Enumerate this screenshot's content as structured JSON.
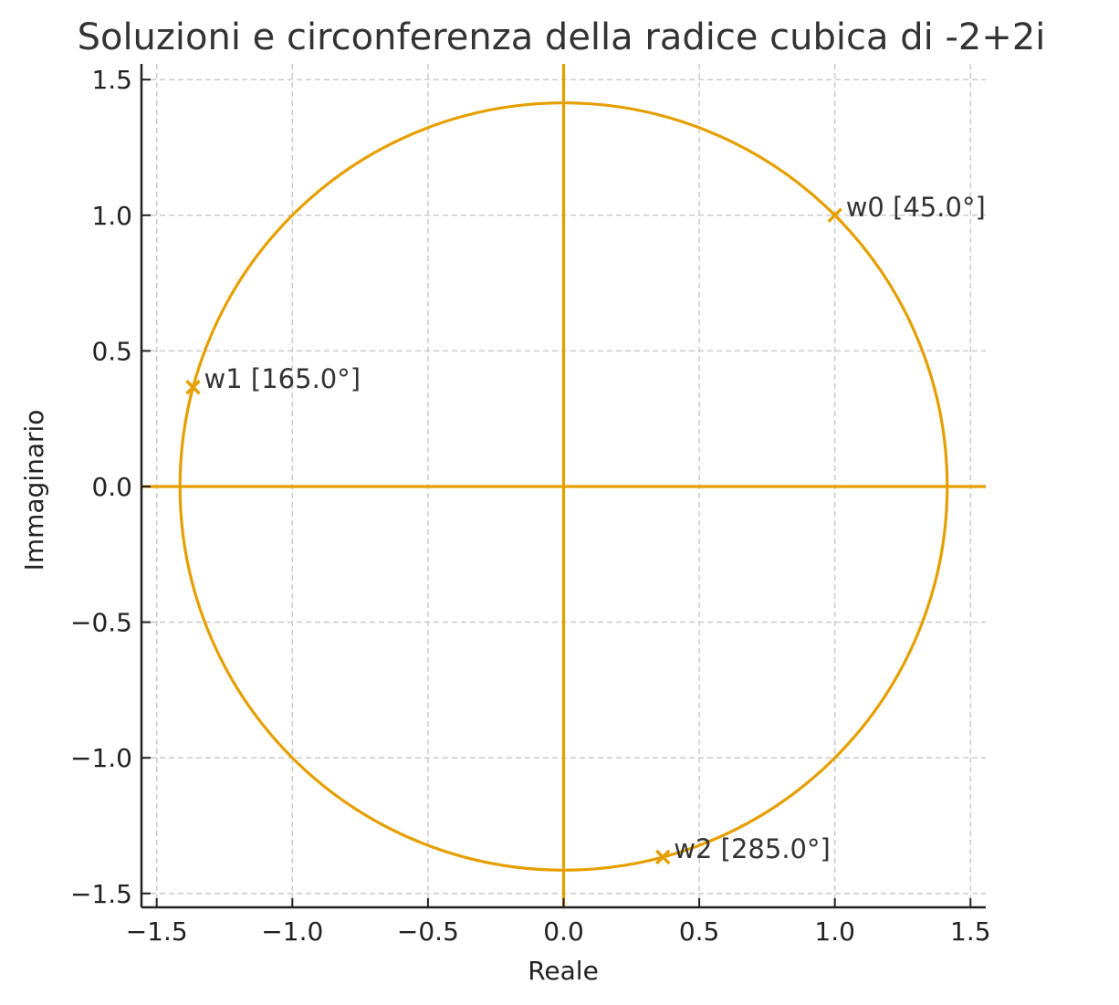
{
  "chart_data": {
    "type": "scatter",
    "title": "Soluzioni e circonferenza della radice cubica di -2+2i",
    "xlabel": "Reale",
    "ylabel": "Immaginario",
    "xlim": [
      -1.56,
      1.56
    ],
    "ylim": [
      -1.56,
      1.56
    ],
    "xticks": [
      -1.5,
      -1.0,
      -0.5,
      0.0,
      0.5,
      1.0,
      1.5
    ],
    "yticks": [
      -1.5,
      -1.0,
      -0.5,
      0.0,
      0.5,
      1.0,
      1.5
    ],
    "xtick_labels": [
      "−1.5",
      "−1.0",
      "−0.5",
      "0.0",
      "0.5",
      "1.0",
      "1.5"
    ],
    "ytick_labels": [
      "−1.5",
      "−1.0",
      "−0.5",
      "0.0",
      "0.5",
      "1.0",
      "1.5"
    ],
    "grid": true,
    "grid_style": "dashed",
    "legend": null,
    "circle": {
      "center": [
        0,
        0
      ],
      "radius": 1.4142,
      "color": "#E69F00"
    },
    "axes_lines": {
      "x_axis": true,
      "y_axis": true,
      "color": "#E69F00"
    },
    "series": [
      {
        "name": "radici",
        "marker": "x",
        "color": "#E69F00",
        "points": [
          {
            "label": "w0 [45.0°]",
            "x": 1.0,
            "y": 1.0,
            "angle_deg": 45.0
          },
          {
            "label": "w1 [165.0°]",
            "x": -1.366,
            "y": 0.366,
            "angle_deg": 165.0
          },
          {
            "label": "w2 [285.0°]",
            "x": 0.366,
            "y": -1.366,
            "angle_deg": 285.0
          }
        ]
      }
    ]
  },
  "colors": {
    "accent": "#E69F00",
    "grid": "#cccccc",
    "spine": "#222222",
    "text": "#333333"
  }
}
